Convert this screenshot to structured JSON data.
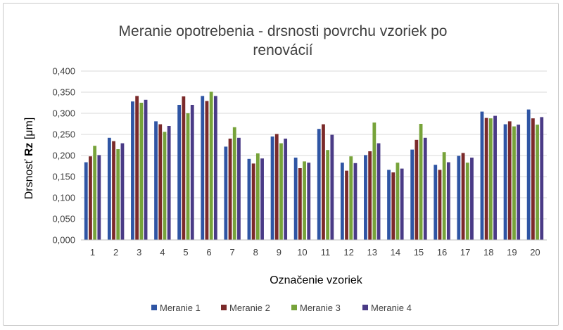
{
  "chart_data": {
    "type": "bar",
    "title_lines": [
      "Meranie opotrebenia - drsnosti povrchu vzoriek po",
      "renovácií"
    ],
    "xlabel": "Označenie vzoriek",
    "ylabel_parts": [
      "Drsnosť ",
      "Rz",
      " [μm]"
    ],
    "ylim": [
      0,
      0.4
    ],
    "yticks": [
      "0,000",
      "0,050",
      "0,100",
      "0,150",
      "0,200",
      "0,250",
      "0,300",
      "0,350",
      "0,400"
    ],
    "grid": true,
    "legend_position": "bottom",
    "categories": [
      "1",
      "2",
      "3",
      "4",
      "5",
      "6",
      "7",
      "8",
      "9",
      "10",
      "11",
      "12",
      "13",
      "14",
      "15",
      "16",
      "17",
      "18",
      "19",
      "20"
    ],
    "series": [
      {
        "name": "Meranie 1",
        "color": "#2F55A4",
        "values": [
          0.184,
          0.242,
          0.328,
          0.281,
          0.32,
          0.341,
          0.221,
          0.192,
          0.245,
          0.195,
          0.263,
          0.183,
          0.201,
          0.166,
          0.214,
          0.178,
          0.199,
          0.304,
          0.274,
          0.309
        ]
      },
      {
        "name": "Meranie 2",
        "color": "#7B2A2A",
        "values": [
          0.198,
          0.234,
          0.341,
          0.274,
          0.34,
          0.329,
          0.24,
          0.181,
          0.251,
          0.17,
          0.274,
          0.164,
          0.21,
          0.16,
          0.237,
          0.166,
          0.206,
          0.289,
          0.281,
          0.288
        ]
      },
      {
        "name": "Meranie 3",
        "color": "#77A33A",
        "values": [
          0.223,
          0.215,
          0.325,
          0.256,
          0.3,
          0.351,
          0.267,
          0.205,
          0.229,
          0.186,
          0.213,
          0.198,
          0.278,
          0.183,
          0.275,
          0.208,
          0.183,
          0.288,
          0.269,
          0.273
        ]
      },
      {
        "name": "Meranie 4",
        "color": "#4A3B86",
        "values": [
          0.201,
          0.229,
          0.332,
          0.27,
          0.32,
          0.341,
          0.242,
          0.193,
          0.24,
          0.183,
          0.249,
          0.182,
          0.229,
          0.169,
          0.242,
          0.184,
          0.195,
          0.294,
          0.273,
          0.291
        ]
      }
    ]
  }
}
